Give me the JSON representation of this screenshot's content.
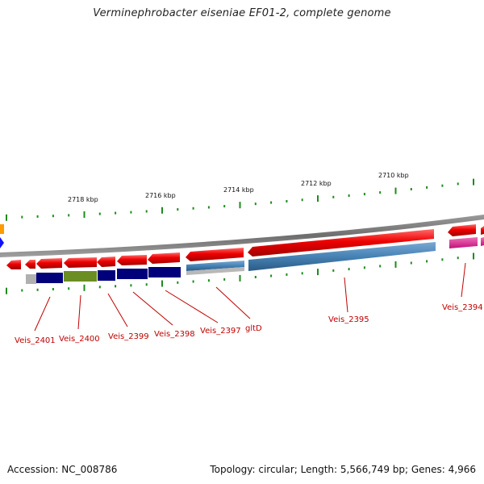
{
  "title": "Verminephrobacter eiseniae EF01-2, complete genome",
  "footer": {
    "accession": "Accession: NC_008786",
    "summary": "Topology: circular; Length: 5,566,749 bp; Genes: 4,966"
  },
  "scale_labels": [
    "2718 kbp",
    "2716 kbp",
    "2714 kbp",
    "2712 kbp",
    "2710 kbp"
  ],
  "gene_labels": [
    "Veis_2401",
    "Veis_2400",
    "Veis_2399",
    "Veis_2398",
    "Veis_2397",
    "gltD",
    "Veis_2395",
    "Veis_2394"
  ],
  "colors": {
    "cds_arrow": "#ee0000",
    "backbone": "#808080",
    "tick": "#1e8a1e",
    "label": "#c00000",
    "cog_navy": "#00007a",
    "cog_olive": "#6b8e23",
    "cog_steelblue": "#4682b4",
    "cog_gray": "#b0b0b0",
    "cog_magenta": "#e0208e"
  }
}
